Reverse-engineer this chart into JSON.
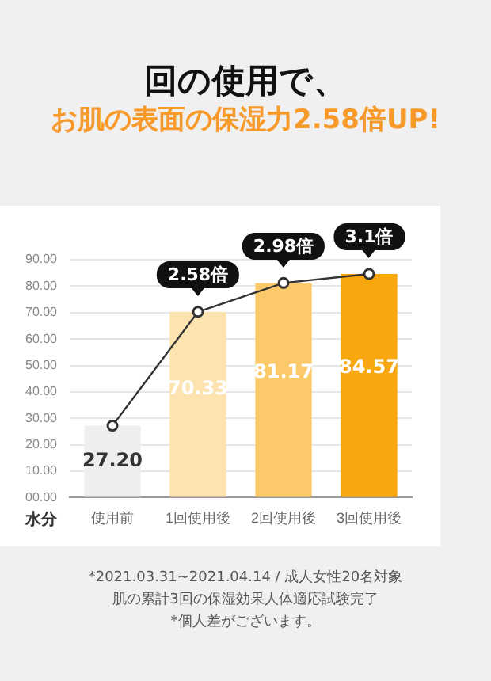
{
  "chart_data": {
    "type": "bar",
    "title": "回の使用で、",
    "subtitle": "お肌の表面の保湿力2.58倍UP!",
    "xlabel": "水分",
    "categories": [
      "使用前",
      "1回使用後",
      "2回使用後",
      "3回使用後"
    ],
    "series": [
      {
        "colors": [
          "#eeeeee",
          "#fde3b0",
          "#fbc96a",
          "#f8a70e"
        ],
        "values": [
          27.2,
          70.33,
          81.17,
          84.57
        ],
        "value_labels": [
          "27.20",
          "70.33",
          "81.17",
          "84.57"
        ]
      },
      {
        "type": "line",
        "color": "#333333",
        "values": [
          27.2,
          70.3,
          81.2,
          84.6
        ]
      }
    ],
    "marker": "circle",
    "ylim": [
      0,
      90
    ],
    "yticks": [
      {
        "value": 0,
        "label": "00.00"
      },
      {
        "value": 10,
        "label": "10.00"
      },
      {
        "value": 20,
        "label": "20.00"
      },
      {
        "value": 30,
        "label": "30.00"
      },
      {
        "value": 40,
        "label": "40.00"
      },
      {
        "value": 50,
        "label": "50.00"
      },
      {
        "value": 60,
        "label": "60.00"
      },
      {
        "value": 70,
        "label": "70.00"
      },
      {
        "value": 80,
        "label": "80.00"
      },
      {
        "value": 90,
        "label": "90.00"
      }
    ],
    "grid": "y",
    "legend": false,
    "annotations": [
      {
        "text": "2.58倍",
        "x": "1回使用後",
        "y": 70.33
      },
      {
        "text": "2.98倍",
        "x": "2回使用後",
        "y": 81.17
      },
      {
        "text": "3.1倍",
        "x": "3回使用後",
        "y": 84.57
      },
      "*2021.03.31~2021.04.14 / 成人女性20名対象",
      "肌の累計3回の保湿効果人体適応試験完了",
      "*個人差がございます。"
    ]
  }
}
